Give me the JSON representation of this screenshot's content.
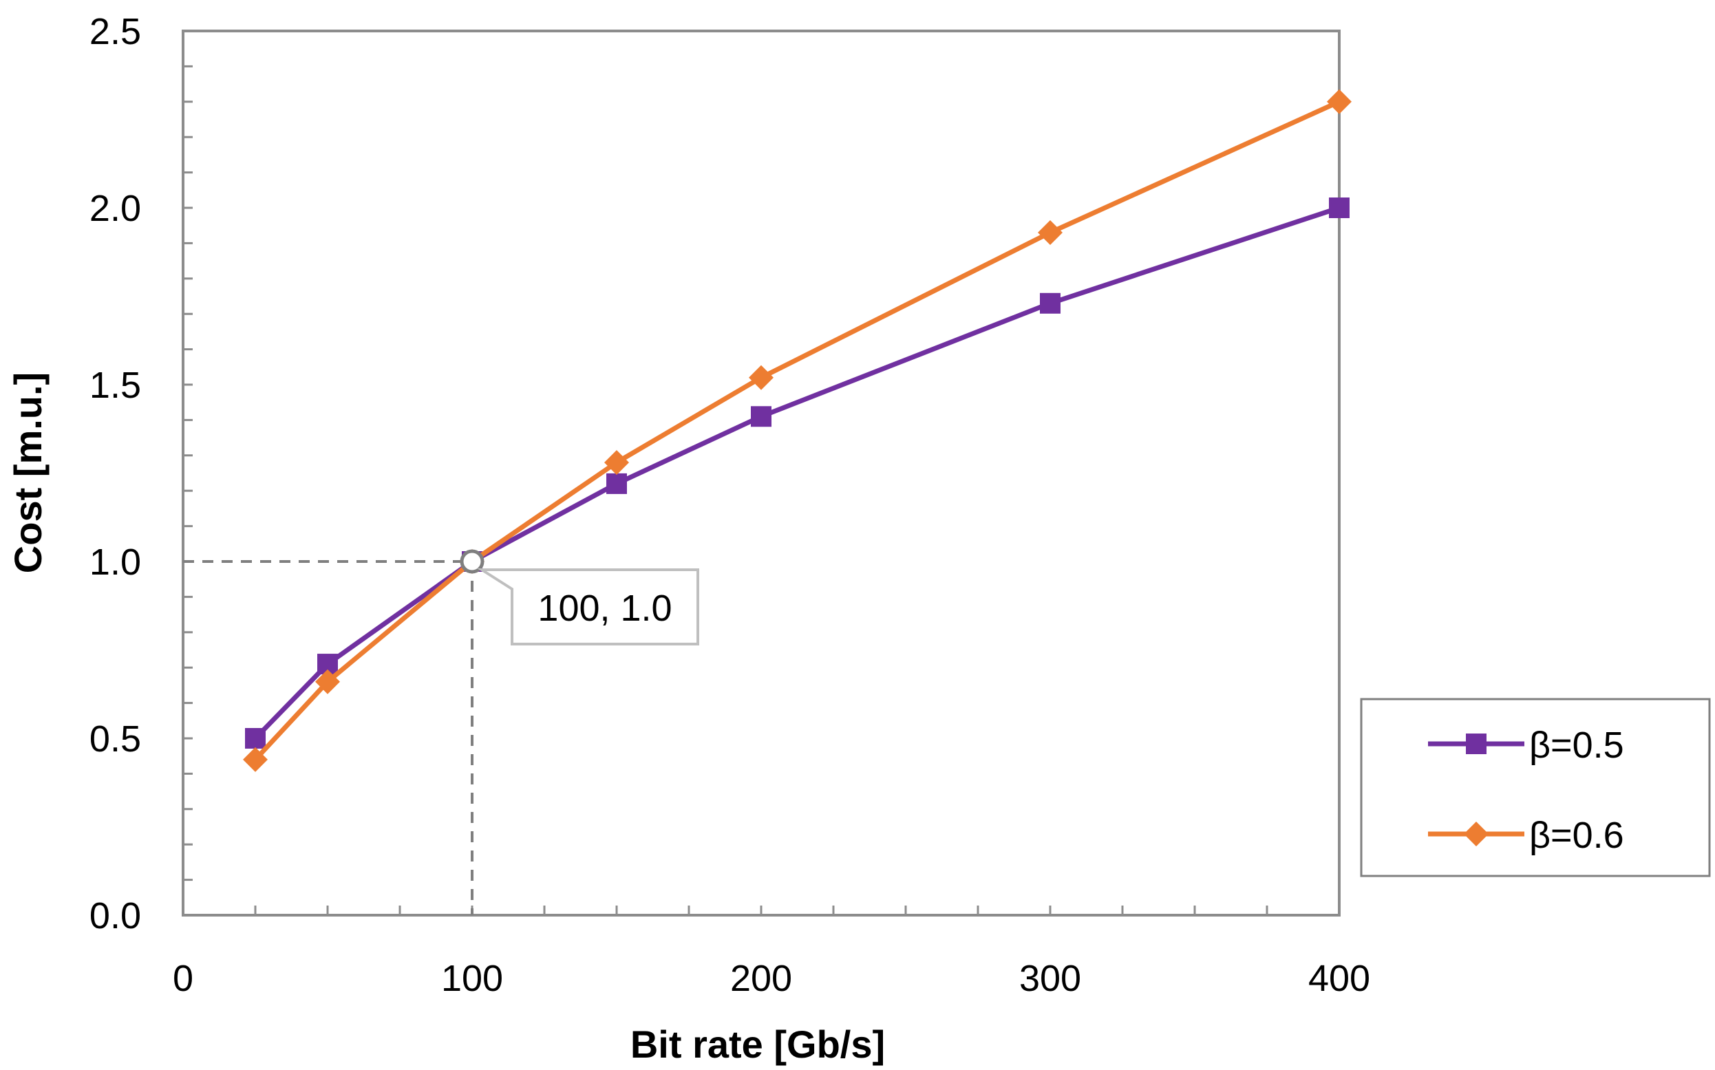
{
  "chart_data": {
    "type": "line",
    "title": "",
    "xlabel": "Bit rate [Gb/s]",
    "ylabel": "Cost [m.u.]",
    "xlim": [
      0,
      400
    ],
    "ylim": [
      0,
      2.5
    ],
    "x_ticks": [
      {
        "value": 0,
        "label": "0"
      },
      {
        "value": 100,
        "label": "100"
      },
      {
        "value": 200,
        "label": "200"
      },
      {
        "value": 300,
        "label": "300"
      },
      {
        "value": 400,
        "label": "400"
      }
    ],
    "y_ticks": [
      {
        "value": 0.0,
        "label": "0.0"
      },
      {
        "value": 0.5,
        "label": "0.5"
      },
      {
        "value": 1.0,
        "label": "1.0"
      },
      {
        "value": 1.5,
        "label": "1.5"
      },
      {
        "value": 2.0,
        "label": "2.0"
      },
      {
        "value": 2.5,
        "label": "2.5"
      }
    ],
    "x_minor_step": 25,
    "y_minor_step": 0.1,
    "grid": false,
    "legend_position": "right",
    "series": [
      {
        "name": "β=0.5",
        "color": "#7030A0",
        "marker": "square",
        "x": [
          25,
          50,
          100,
          150,
          200,
          300,
          400
        ],
        "values": [
          0.5,
          0.71,
          1.0,
          1.22,
          1.41,
          1.73,
          2.0
        ]
      },
      {
        "name": "β=0.6",
        "color": "#ED7D31",
        "marker": "diamond",
        "x": [
          25,
          50,
          100,
          150,
          200,
          300,
          400
        ],
        "values": [
          0.44,
          0.66,
          1.0,
          1.28,
          1.52,
          1.93,
          2.3
        ]
      }
    ],
    "annotation": {
      "x": 100,
      "y": 1.0,
      "label": "100, 1.0"
    }
  }
}
